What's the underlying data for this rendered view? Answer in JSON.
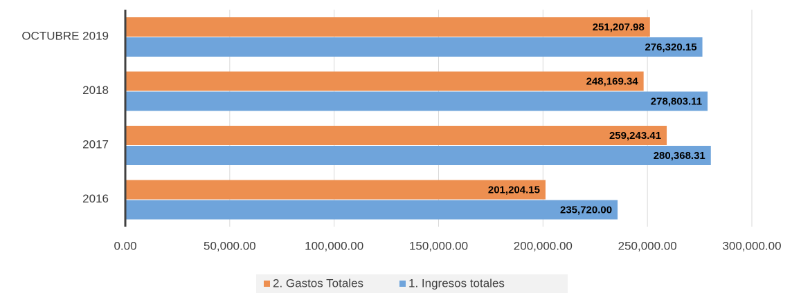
{
  "chart_data": {
    "type": "barh",
    "categories": [
      "OCTUBRE 2019",
      "2018",
      "2017",
      "2016"
    ],
    "series": [
      {
        "name": "2. Gastos Totales",
        "color": "#ed8f50",
        "values": [
          251207.98,
          248169.34,
          259243.41,
          201204.15
        ],
        "value_labels": [
          "251,207.98",
          "248,169.34",
          "259,243.41",
          "201,204.15"
        ]
      },
      {
        "name": "1. Ingresos totales",
        "color": "#6fa4db",
        "values": [
          276320.15,
          278803.11,
          280368.31,
          235720.0
        ],
        "value_labels": [
          "276,320.15",
          "278,803.11",
          "280,368.31",
          "235,720.00"
        ]
      }
    ],
    "xlim": [
      0,
      300000
    ],
    "xticks": [
      {
        "value": 0,
        "label": "0.00"
      },
      {
        "value": 50000,
        "label": "50,000.00"
      },
      {
        "value": 100000,
        "label": "100,000.00"
      },
      {
        "value": 150000,
        "label": "150,000.00"
      },
      {
        "value": 200000,
        "label": "200,000.00"
      },
      {
        "value": 250000,
        "label": "250,000.00"
      },
      {
        "value": 300000,
        "label": "300,000.00"
      }
    ],
    "grid": true,
    "legend": "bottom"
  }
}
